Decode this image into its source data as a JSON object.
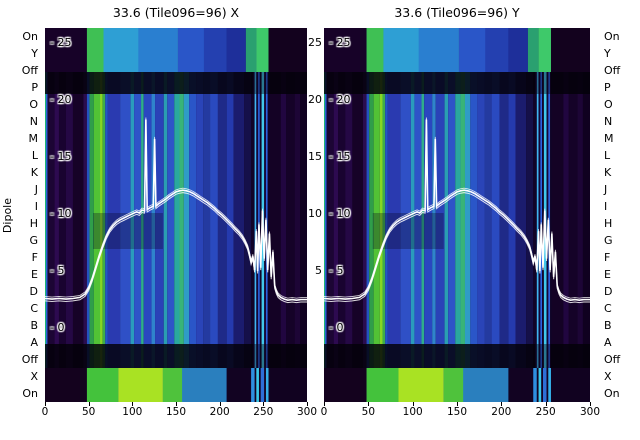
{
  "axes": {
    "ylabel": "Dipole",
    "dipole_labels": [
      "On",
      "Y",
      "Off",
      "P",
      "O",
      "N",
      "M",
      "L",
      "K",
      "J",
      "I",
      "H",
      "G",
      "F",
      "E",
      "D",
      "C",
      "B",
      "A",
      "Off",
      "X",
      "On"
    ],
    "x_ticks": [
      0,
      50,
      100,
      150,
      200,
      250,
      300
    ],
    "inner_value_ticks": [
      25,
      20,
      15,
      10,
      5,
      0
    ],
    "mid_value_ticks": [
      25,
      20,
      15,
      10,
      5
    ]
  },
  "colors": {
    "background": "#ffffff",
    "heat_bg": "#140322",
    "curve": "#ffffff",
    "text": "#000000",
    "off_band": "rgba(4,1,9,0.84)"
  },
  "chart_data": {
    "type": "heatmap",
    "panels": [
      {
        "id": "X",
        "title": "33.6 (Tile096=96) X"
      },
      {
        "id": "Y",
        "title": "33.6 (Tile096=96) Y"
      }
    ],
    "x_range": [
      0,
      300
    ],
    "x_ticks": [
      0,
      50,
      100,
      150,
      200,
      250,
      300
    ],
    "ylabel": "Dipole",
    "rows": [
      "On",
      "Y",
      "Off",
      "P",
      "O",
      "N",
      "M",
      "L",
      "K",
      "J",
      "I",
      "H",
      "G",
      "F",
      "E",
      "D",
      "C",
      "B",
      "A",
      "Off",
      "X",
      "On"
    ],
    "value_axis_ticks": [
      25,
      20,
      15,
      10,
      5,
      0
    ],
    "overlay_line_points": [
      [
        0,
        2.5
      ],
      [
        8,
        2.45
      ],
      [
        16,
        2.5
      ],
      [
        24,
        2.45
      ],
      [
        32,
        2.5
      ],
      [
        40,
        2.6
      ],
      [
        46,
        2.9
      ],
      [
        50,
        3.4
      ],
      [
        54,
        4.2
      ],
      [
        58,
        5.2
      ],
      [
        62,
        6.2
      ],
      [
        66,
        7.1
      ],
      [
        70,
        7.9
      ],
      [
        74,
        8.5
      ],
      [
        78,
        8.9
      ],
      [
        82,
        9.2
      ],
      [
        86,
        9.4
      ],
      [
        90,
        9.55
      ],
      [
        94,
        9.7
      ],
      [
        98,
        9.85
      ],
      [
        102,
        10.0
      ],
      [
        105,
        10.1
      ],
      [
        108,
        10.0
      ],
      [
        111,
        10.25
      ],
      [
        114,
        10.2
      ],
      [
        115.5,
        18.2
      ],
      [
        117,
        10.3
      ],
      [
        120,
        10.45
      ],
      [
        124,
        10.6
      ],
      [
        125.5,
        16.5
      ],
      [
        127,
        10.6
      ],
      [
        130,
        10.8
      ],
      [
        134,
        11.0
      ],
      [
        138,
        11.2
      ],
      [
        142,
        11.45
      ],
      [
        146,
        11.65
      ],
      [
        150,
        11.85
      ],
      [
        154,
        11.95
      ],
      [
        158,
        12.0
      ],
      [
        162,
        11.95
      ],
      [
        166,
        11.85
      ],
      [
        170,
        11.7
      ],
      [
        174,
        11.5
      ],
      [
        178,
        11.3
      ],
      [
        182,
        11.1
      ],
      [
        186,
        10.9
      ],
      [
        190,
        10.65
      ],
      [
        194,
        10.4
      ],
      [
        198,
        10.1
      ],
      [
        202,
        9.85
      ],
      [
        206,
        9.55
      ],
      [
        210,
        9.25
      ],
      [
        214,
        8.95
      ],
      [
        218,
        8.6
      ],
      [
        222,
        8.3
      ],
      [
        226,
        7.9
      ],
      [
        229,
        7.5
      ],
      [
        232,
        7.0
      ],
      [
        234,
        6.4
      ],
      [
        236,
        5.7
      ],
      [
        238,
        6.2
      ],
      [
        240,
        5.0
      ],
      [
        242,
        8.4
      ],
      [
        243.5,
        4.9
      ],
      [
        245,
        9.0
      ],
      [
        247,
        5.2
      ],
      [
        249,
        10.2
      ],
      [
        251,
        6.0
      ],
      [
        253,
        9.4
      ],
      [
        255,
        5.0
      ],
      [
        257,
        8.2
      ],
      [
        259,
        4.4
      ],
      [
        261,
        6.6
      ],
      [
        263,
        3.6
      ],
      [
        265,
        3.1
      ],
      [
        267,
        2.8
      ],
      [
        270,
        2.6
      ],
      [
        274,
        2.45
      ],
      [
        278,
        2.35
      ],
      [
        283,
        2.4
      ],
      [
        288,
        2.35
      ],
      [
        293,
        2.4
      ],
      [
        300,
        2.4
      ]
    ],
    "heat_stripes_main": [
      {
        "x": 0,
        "w": 1.2,
        "c": "#20b474"
      },
      {
        "x": 1.2,
        "w": 1.6,
        "c": "#2b6ae0"
      },
      {
        "x": 3,
        "w": 8,
        "c": "#1c0534"
      },
      {
        "x": 11,
        "w": 5,
        "c": "#2d0a50"
      },
      {
        "x": 16,
        "w": 8,
        "c": "#190330"
      },
      {
        "x": 24,
        "w": 8,
        "c": "#250845"
      },
      {
        "x": 32,
        "w": 12,
        "c": "#160227"
      },
      {
        "x": 44,
        "w": 4,
        "c": "#2a0d4e"
      },
      {
        "x": 48,
        "w": 3,
        "c": "#2353c0"
      },
      {
        "x": 51,
        "w": 5,
        "c": "#2f9e4a"
      },
      {
        "x": 56,
        "w": 7,
        "c": "#52c235"
      },
      {
        "x": 63,
        "w": 3,
        "c": "#86d724"
      },
      {
        "x": 66,
        "w": 3,
        "c": "#3fae49"
      },
      {
        "x": 69,
        "w": 3,
        "c": "#2456c8"
      },
      {
        "x": 72,
        "w": 14,
        "c": "#2a3ab0"
      },
      {
        "x": 86,
        "w": 12,
        "c": "#2f50c6"
      },
      {
        "x": 98,
        "w": 4,
        "c": "#2a9cbc"
      },
      {
        "x": 102,
        "w": 8,
        "c": "#2e54c8"
      },
      {
        "x": 110,
        "w": 3,
        "c": "#2fae8b"
      },
      {
        "x": 113,
        "w": 9,
        "c": "#2a47c0"
      },
      {
        "x": 122,
        "w": 4,
        "c": "#2f84cc"
      },
      {
        "x": 126,
        "w": 10,
        "c": "#2a42b8"
      },
      {
        "x": 136,
        "w": 4,
        "c": "#2a9eb2"
      },
      {
        "x": 140,
        "w": 8,
        "c": "#2e54c8"
      },
      {
        "x": 148,
        "w": 6,
        "c": "#2aa89e"
      },
      {
        "x": 154,
        "w": 5,
        "c": "#38b478"
      },
      {
        "x": 159,
        "w": 6,
        "c": "#2f9cc6"
      },
      {
        "x": 165,
        "w": 8,
        "c": "#2a56c8"
      },
      {
        "x": 173,
        "w": 8,
        "c": "#2a44b8"
      },
      {
        "x": 181,
        "w": 8,
        "c": "#243aa0"
      },
      {
        "x": 189,
        "w": 9,
        "c": "#2a4ac0"
      },
      {
        "x": 198,
        "w": 10,
        "c": "#1f2a88"
      },
      {
        "x": 208,
        "w": 8,
        "c": "#253aae"
      },
      {
        "x": 216,
        "w": 12,
        "c": "#1b1c6e"
      },
      {
        "x": 228,
        "w": 8,
        "c": "#151049"
      },
      {
        "x": 236,
        "w": 4,
        "c": "#110428"
      },
      {
        "x": 240,
        "w": 2,
        "c": "#3fb4f0"
      },
      {
        "x": 242,
        "w": 2,
        "c": "#150636"
      },
      {
        "x": 244,
        "w": 2,
        "c": "#2a62e0"
      },
      {
        "x": 246,
        "w": 2,
        "c": "#110428"
      },
      {
        "x": 248,
        "w": 3,
        "c": "#41c8ea"
      },
      {
        "x": 251,
        "w": 2,
        "c": "#150636"
      },
      {
        "x": 253,
        "w": 2,
        "c": "#2a62e0"
      },
      {
        "x": 255,
        "w": 2,
        "c": "#110428"
      },
      {
        "x": 257,
        "w": 13,
        "c": "#140225"
      },
      {
        "x": 270,
        "w": 6,
        "c": "#210640"
      },
      {
        "x": 276,
        "w": 10,
        "c": "#150228"
      },
      {
        "x": 286,
        "w": 6,
        "c": "#1d0536"
      },
      {
        "x": 292,
        "w": 8,
        "c": "#100120"
      }
    ],
    "heat_stripes_top": [
      {
        "x": 0,
        "w": 48,
        "c": "#170228"
      },
      {
        "x": 48,
        "w": 19,
        "c": "#3fc054"
      },
      {
        "x": 67,
        "w": 40,
        "c": "#2e9fd4"
      },
      {
        "x": 107,
        "w": 45,
        "c": "#2a7fd0"
      },
      {
        "x": 152,
        "w": 30,
        "c": "#2a56c8"
      },
      {
        "x": 182,
        "w": 26,
        "c": "#2440b0"
      },
      {
        "x": 208,
        "w": 22,
        "c": "#1e2f9a"
      },
      {
        "x": 230,
        "w": 12,
        "c": "#2aa070"
      },
      {
        "x": 242,
        "w": 14,
        "c": "#3ec96a"
      },
      {
        "x": 256,
        "w": 44,
        "c": "#13021e"
      }
    ],
    "heat_stripes_bottom": [
      {
        "x": 0,
        "w": 48,
        "c": "#14021e"
      },
      {
        "x": 48,
        "w": 36,
        "c": "#44c23c"
      },
      {
        "x": 84,
        "w": 51,
        "c": "#a9e223"
      },
      {
        "x": 135,
        "w": 22,
        "c": "#4fc23c"
      },
      {
        "x": 157,
        "w": 51,
        "c": "#2a7fbe"
      },
      {
        "x": 208,
        "w": 28,
        "c": "#120322"
      },
      {
        "x": 236,
        "w": 4,
        "c": "#2e8fe0"
      },
      {
        "x": 240,
        "w": 2,
        "c": "#120322"
      },
      {
        "x": 242,
        "w": 3,
        "c": "#39c8e8"
      },
      {
        "x": 245,
        "w": 2,
        "c": "#120322"
      },
      {
        "x": 247,
        "w": 4,
        "c": "#2e6fd8"
      },
      {
        "x": 251,
        "w": 2,
        "c": "#120322"
      },
      {
        "x": 253,
        "w": 3,
        "c": "#35b0e8"
      },
      {
        "x": 256,
        "w": 44,
        "c": "#110220"
      }
    ],
    "off_band_rows": [
      "Off",
      "Off"
    ],
    "bright_line_cluster_x": [
      238,
      256
    ]
  }
}
